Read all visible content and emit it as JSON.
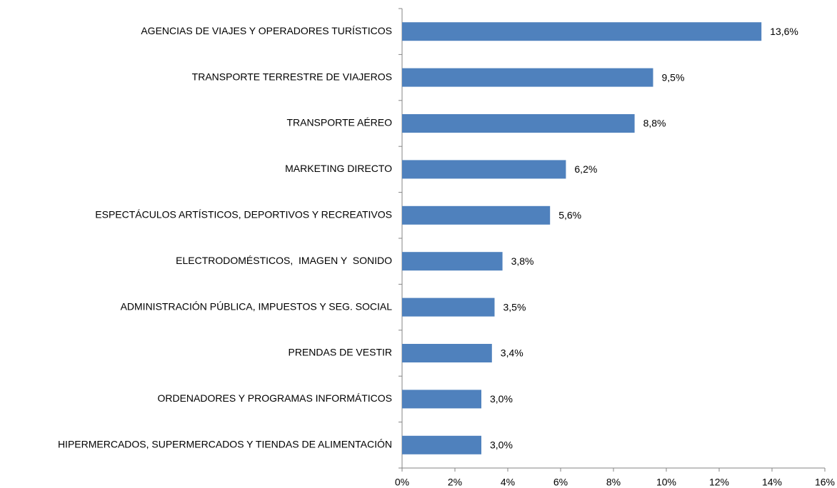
{
  "chart_data": {
    "type": "bar",
    "orientation": "horizontal",
    "categories": [
      "AGENCIAS DE VIAJES Y OPERADORES TURÍSTICOS",
      "TRANSPORTE TERRESTRE DE VIAJEROS",
      "TRANSPORTE AÉREO",
      "MARKETING DIRECTO",
      "ESPECTÁCULOS ARTÍSTICOS, DEPORTIVOS Y RECREATIVOS",
      "ELECTRODOMÉSTICOS,  IMAGEN Y  SONIDO",
      "ADMINISTRACIÓN PÚBLICA, IMPUESTOS Y SEG. SOCIAL",
      "PRENDAS DE VESTIR",
      "ORDENADORES Y PROGRAMAS INFORMÁTICOS",
      "HIPERMERCADOS, SUPERMERCADOS Y TIENDAS DE ALIMENTACIÓN"
    ],
    "values": [
      13.6,
      9.5,
      8.8,
      6.2,
      5.6,
      3.8,
      3.5,
      3.4,
      3.0,
      3.0
    ],
    "value_labels": [
      "13,6%",
      "9,5%",
      "8,8%",
      "6,2%",
      "5,6%",
      "3,8%",
      "3,5%",
      "3,4%",
      "3,0%",
      "3,0%"
    ],
    "color": "#4f81bd",
    "xlim": [
      0,
      16
    ],
    "xticks": [
      {
        "value": 0,
        "label": "0%"
      },
      {
        "value": 2,
        "label": "2%"
      },
      {
        "value": 4,
        "label": "4%"
      },
      {
        "value": 6,
        "label": "6%"
      },
      {
        "value": 8,
        "label": "8%"
      },
      {
        "value": 10,
        "label": "10%"
      },
      {
        "value": 12,
        "label": "12%"
      },
      {
        "value": 14,
        "label": "14%"
      },
      {
        "value": 16,
        "label": "16%"
      }
    ],
    "grid": false
  }
}
